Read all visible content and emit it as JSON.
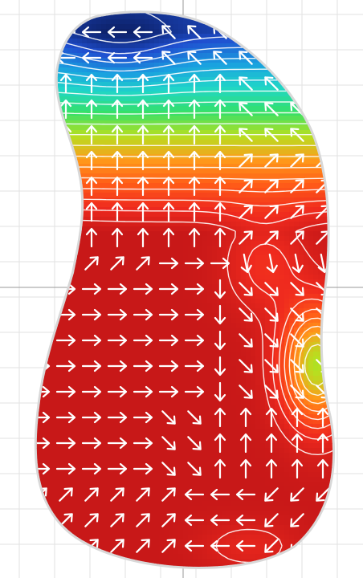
{
  "figure": {
    "type": "vector-field-heatmap",
    "background": "#ffffff",
    "grid_color": "#e2e2e2",
    "axis_color": "#9a9a9a",
    "outline_color": "#d8d8d8",
    "arrow_color": "#ffffff",
    "contour_color": "#ffffff",
    "colormap": [
      "#0a1a5a",
      "#1f4fd0",
      "#1aa0e0",
      "#20d6c8",
      "#34e06a",
      "#b6e020",
      "#ff9a1a",
      "#ff5a18",
      "#ef2a1e",
      "#c81818"
    ]
  },
  "chart_data": {
    "type": "heatmap",
    "title": "",
    "xlabel": "",
    "ylabel": "",
    "grid": true,
    "field_regions": [
      {
        "region": "top",
        "level": 0.05,
        "arrow_direction": "up"
      },
      {
        "region": "upper-middle",
        "level": 0.45,
        "arrow_direction": "up"
      },
      {
        "region": "right-middle",
        "level": 0.5,
        "arrow_direction": "down-right"
      },
      {
        "region": "left-lower",
        "level": 0.9,
        "arrow_direction": "right"
      },
      {
        "region": "bottom",
        "level": 0.75,
        "arrow_direction": "left"
      }
    ]
  }
}
